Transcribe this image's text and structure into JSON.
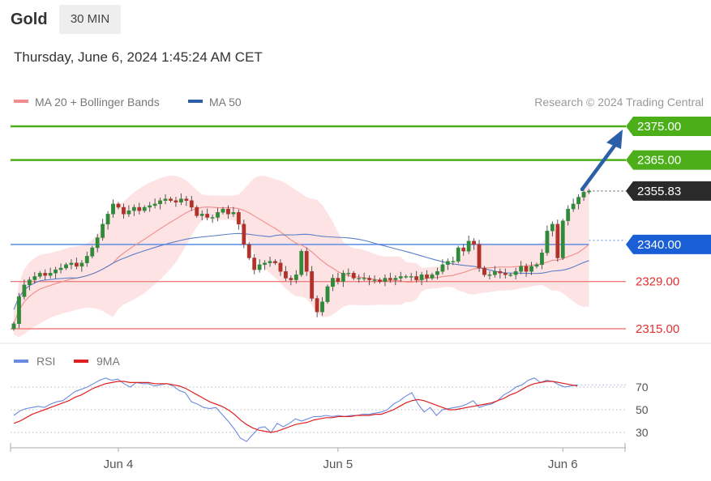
{
  "header": {
    "title": "Gold",
    "timeframe": "30 MIN",
    "timestamp": "Thursday, June 6, 2024 1:45:24 AM CET"
  },
  "legend": {
    "bollinger_label": "MA 20 + Bollinger Bands",
    "ma50_label": "MA 50",
    "research": "Research © 2024 Trading Central",
    "bollinger_color": "#f28b8b",
    "ma50_color": "#2b5fa8"
  },
  "rsi_legend": {
    "rsi_label": "RSI",
    "ma9_label": "9MA",
    "rsi_color": "#6b8be0",
    "ma9_color": "#e02020"
  },
  "chart_data": {
    "type": "candlestick",
    "price_levels": [
      {
        "value": 2375.0,
        "label": "2375.00",
        "kind": "target",
        "color": "#4caf1a"
      },
      {
        "value": 2365.0,
        "label": "2365.00",
        "kind": "target",
        "color": "#4caf1a"
      },
      {
        "value": 2355.83,
        "label": "2355.83",
        "kind": "last",
        "color": "#2a2a2a"
      },
      {
        "value": 2340.0,
        "label": "2340.00",
        "kind": "pivot",
        "color": "#1a5fd6"
      },
      {
        "value": 2329.0,
        "label": "2329.00",
        "kind": "support",
        "color": "#e03030"
      },
      {
        "value": 2315.0,
        "label": "2315.00",
        "kind": "support",
        "color": "#e03030"
      }
    ],
    "price_range": [
      2313,
      2378
    ],
    "x_labels": [
      "Jun 4",
      "Jun 5",
      "Jun 6"
    ],
    "x_label_slots": [
      20,
      62,
      105
    ],
    "slot_count": 111,
    "closes": [
      2316.5,
      2324.5,
      2328,
      2329.5,
      2330.5,
      2331.5,
      2330.8,
      2331.5,
      2332.5,
      2333,
      2334,
      2334.5,
      2333.5,
      2334.5,
      2336.5,
      2339,
      2342,
      2346,
      2349,
      2352,
      2351,
      2349,
      2350,
      2351,
      2350,
      2351,
      2351.5,
      2352,
      2353,
      2353.5,
      2353,
      2352.5,
      2353.5,
      2353,
      2351,
      2348.5,
      2349,
      2348,
      2348,
      2349.5,
      2350.5,
      2349,
      2349.5,
      2346,
      2340,
      2336,
      2332.5,
      2334,
      2334.5,
      2335,
      2334.5,
      2332,
      2330,
      2329.5,
      2331,
      2338,
      2332,
      2324,
      2320,
      2323,
      2327.5,
      2330,
      2329,
      2331.5,
      2331.5,
      2330,
      2330,
      2330,
      2329.5,
      2329.5,
      2329,
      2330,
      2329.5,
      2330,
      2330.5,
      2330.5,
      2330.5,
      2329.5,
      2331,
      2330,
      2331,
      2332,
      2334,
      2335,
      2335,
      2339,
      2338,
      2341,
      2340,
      2333,
      2331,
      2331,
      2332,
      2331.5,
      2331,
      2331,
      2332,
      2333.5,
      2332,
      2333.5,
      2334,
      2337.5,
      2344,
      2346,
      2336,
      2347,
      2350.5,
      2352,
      2354,
      2355.5,
      2355.83
    ],
    "rsi": {
      "levels": [
        70,
        50,
        30
      ],
      "range": [
        20,
        80
      ],
      "rsi_values": [
        45,
        49,
        51,
        52,
        53,
        52,
        55,
        57,
        58,
        62,
        66,
        68,
        70,
        73,
        76,
        78,
        76,
        77,
        73,
        70,
        74,
        73,
        73,
        71,
        72,
        73,
        71,
        67,
        65,
        57,
        55,
        52,
        51,
        52,
        46,
        40,
        33,
        25,
        22,
        28,
        34,
        35,
        30,
        38,
        35,
        38,
        42,
        40,
        42,
        44,
        44,
        45,
        44,
        45,
        44,
        45,
        45,
        46,
        46,
        47,
        48,
        50,
        55,
        58,
        62,
        65,
        55,
        48,
        52,
        45,
        50,
        51,
        52,
        53,
        55,
        58,
        52,
        54,
        55,
        58,
        63,
        66,
        70,
        72,
        76,
        78,
        74,
        76,
        75,
        72,
        70,
        71,
        72
      ],
      "ma9_values": [
        38,
        40,
        43,
        46,
        48,
        50,
        52,
        54,
        56,
        58,
        61,
        63,
        66,
        69,
        71,
        73,
        74,
        75,
        75,
        74,
        74,
        74,
        74,
        73,
        73,
        73,
        72,
        71,
        69,
        66,
        63,
        60,
        57,
        55,
        53,
        50,
        46,
        41,
        37,
        34,
        32,
        31,
        30,
        31,
        33,
        35,
        37,
        38,
        39,
        41,
        42,
        43,
        43,
        44,
        44,
        44,
        45,
        45,
        45,
        46,
        46,
        48,
        50,
        53,
        56,
        58,
        59,
        58,
        56,
        54,
        52,
        50,
        50,
        51,
        52,
        53,
        54,
        55,
        56,
        58,
        60,
        63,
        65,
        68,
        71,
        73,
        74,
        75,
        75,
        74,
        73,
        72,
        71
      ]
    }
  }
}
